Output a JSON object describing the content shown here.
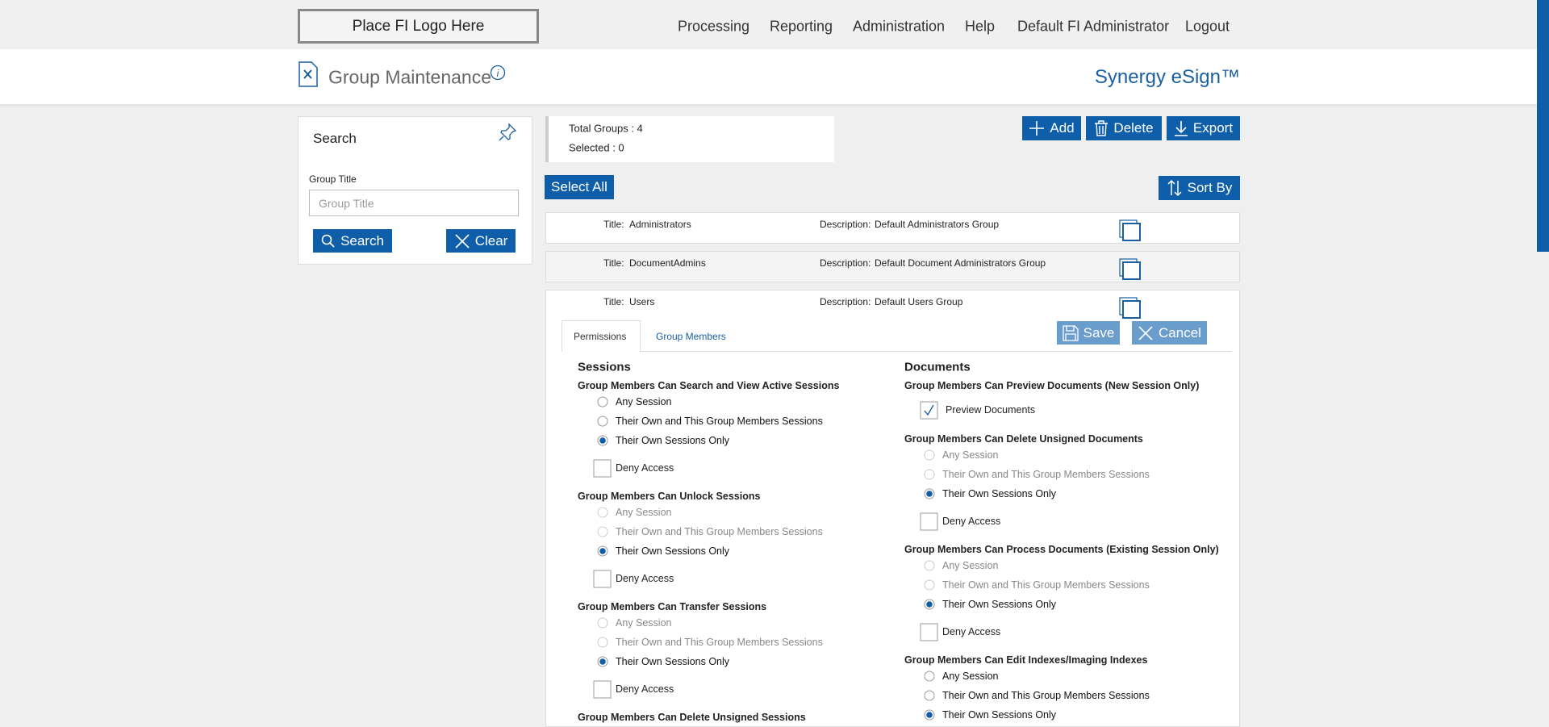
{
  "header": {
    "logo": "Place FI Logo Here",
    "nav": [
      "Processing",
      "Reporting",
      "Administration",
      "Help",
      "Default FI Administrator",
      "Logout"
    ]
  },
  "subheader": {
    "title": "Group Maintenance",
    "brand": "Synergy eSign™"
  },
  "search_panel": {
    "title": "Search",
    "field_label": "Group Title",
    "field_placeholder": "Group Title",
    "buttons": [
      "Search",
      "Clear"
    ]
  },
  "summary": {
    "total": "Total Groups : 4",
    "selected": "Selected : 0"
  },
  "toolbar": {
    "actions": [
      "Add",
      "Delete",
      "Export"
    ],
    "select_all": "Select All",
    "sort_by": "Sort By"
  },
  "groups": {
    "title_label": "Title:",
    "description_label": "Description:",
    "rows": [
      {
        "title": "Administrators",
        "description": "Default Administrators Group"
      },
      {
        "title": "DocumentAdmins",
        "description": "Default Document Administrators Group"
      },
      {
        "title": "Users",
        "description": "Default Users Group"
      }
    ]
  },
  "editor": {
    "tabs": [
      "Permissions",
      "Group Members"
    ],
    "active_tab": 0,
    "buttons": [
      "Save",
      "Cancel"
    ],
    "columns": [
      {
        "heading": "Sessions",
        "sections": [
          {
            "label": "Group Members Can Search and View Active Sessions",
            "options": [
              "Any Session",
              "Their Own and This Group Members Sessions",
              "Their Own Sessions Only"
            ],
            "selected": 2,
            "enabled": true,
            "deny": "Deny Access"
          },
          {
            "label": "Group Members Can Unlock Sessions",
            "options": [
              "Any Session",
              "Their Own and This Group Members Sessions",
              "Their Own Sessions Only"
            ],
            "selected": 2,
            "enabled": false,
            "deny": "Deny Access"
          },
          {
            "label": "Group Members Can Transfer Sessions",
            "options": [
              "Any Session",
              "Their Own and This Group Members Sessions",
              "Their Own Sessions Only"
            ],
            "selected": 2,
            "enabled": false,
            "deny": "Deny Access"
          },
          {
            "label": "Group Members Can Delete Unsigned Sessions"
          }
        ]
      },
      {
        "heading": "Documents",
        "sections": [
          {
            "label": "Group Members Can Preview Documents (New Session Only)",
            "checkbox": "Preview Documents",
            "checked": true
          },
          {
            "label": "Group Members Can Delete Unsigned Documents",
            "options": [
              "Any Session",
              "Their Own and This Group Members Sessions",
              "Their Own Sessions Only"
            ],
            "selected": 2,
            "enabled": false,
            "deny": "Deny Access"
          },
          {
            "label": "Group Members Can Process Documents (Existing Session Only)",
            "options": [
              "Any Session",
              "Their Own and This Group Members Sessions",
              "Their Own Sessions Only"
            ],
            "selected": 2,
            "enabled": false,
            "deny": "Deny Access"
          },
          {
            "label": "Group Members Can Edit Indexes/Imaging Indexes",
            "options": [
              "Any Session",
              "Their Own and This Group Members Sessions",
              "Their Own Sessions Only"
            ],
            "selected": 2,
            "enabled": true
          }
        ]
      }
    ]
  }
}
